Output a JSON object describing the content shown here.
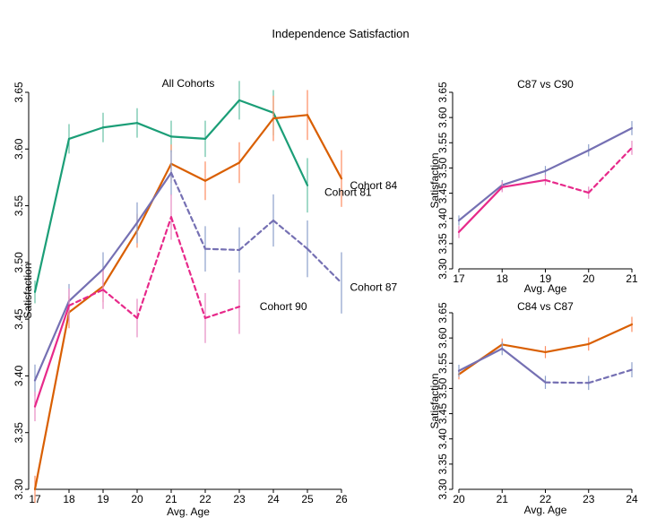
{
  "figure_title": "Independence Satisfaction",
  "colors": {
    "c81": "#1b9e77",
    "c84": "#d95f02",
    "c87": "#7570b3",
    "c90": "#e7298a",
    "err81": "#66c2a5",
    "err84": "#fc8d62",
    "err87": "#8da0cb",
    "err90": "#e78ac3"
  },
  "chart_data": [
    {
      "id": "main",
      "type": "line",
      "title": "All Cohorts",
      "xlabel": "Avg. Age",
      "ylabel": "Satisfaction",
      "xlim": [
        17,
        26
      ],
      "ylim": [
        3.3,
        3.65
      ],
      "xticks": [
        17,
        18,
        19,
        20,
        21,
        22,
        23,
        24,
        25,
        26
      ],
      "yticks": [
        3.3,
        3.35,
        3.4,
        3.45,
        3.5,
        3.55,
        3.6,
        3.65
      ],
      "ytick_labels": [
        "3.30",
        "3.35",
        "3.40",
        "3.45",
        "3.50",
        "3.55",
        "3.60",
        "3.65"
      ],
      "series": [
        {
          "name": "Cohort 81",
          "color": "c81",
          "err_color": "err81",
          "x": [
            17,
            18,
            19,
            20,
            21,
            22,
            23,
            24,
            25
          ],
          "y": [
            3.474,
            3.609,
            3.619,
            3.623,
            3.611,
            3.609,
            3.643,
            3.632,
            3.568
          ],
          "err": [
            0.01,
            0.013,
            0.013,
            0.013,
            0.014,
            0.016,
            0.017,
            0.02,
            0.024
          ],
          "dashed_from": null
        },
        {
          "name": "Cohort 84",
          "color": "c84",
          "err_color": "err84",
          "x": [
            17,
            18,
            19,
            20,
            21,
            22,
            23,
            24,
            25,
            26
          ],
          "y": [
            3.3,
            3.456,
            3.479,
            3.528,
            3.587,
            3.572,
            3.588,
            3.627,
            3.63,
            3.574
          ],
          "err": [
            0.012,
            0.014,
            0.014,
            0.015,
            0.017,
            0.017,
            0.018,
            0.02,
            0.022,
            0.025
          ],
          "dashed_from": null
        },
        {
          "name": "Cohort 87",
          "color": "c87",
          "err_color": "err87",
          "x": [
            17,
            18,
            19,
            20,
            21,
            22,
            23,
            24,
            25,
            26
          ],
          "y": [
            3.396,
            3.466,
            3.494,
            3.535,
            3.579,
            3.512,
            3.511,
            3.537,
            3.512,
            3.482
          ],
          "err": [
            0.014,
            0.015,
            0.015,
            0.018,
            0.02,
            0.02,
            0.02,
            0.023,
            0.025,
            0.027
          ],
          "dashed_from": 21
        },
        {
          "name": "Cohort 90",
          "color": "c90",
          "err_color": "err90",
          "x": [
            17,
            18,
            19,
            20,
            21,
            22,
            23
          ],
          "y": [
            3.373,
            3.462,
            3.476,
            3.451,
            3.54,
            3.451,
            3.461
          ],
          "err": [
            0.013,
            0.015,
            0.017,
            0.017,
            0.02,
            0.022,
            0.024
          ],
          "dashed_from": 18
        }
      ],
      "labels": [
        {
          "series": "Cohort 84",
          "x": 26.25,
          "y": 3.568
        },
        {
          "series": "Cohort 81",
          "x": 25.5,
          "y": 3.562
        },
        {
          "series": "Cohort 87",
          "x": 26.25,
          "y": 3.478
        },
        {
          "series": "Cohort 90",
          "x": 23.6,
          "y": 3.461
        }
      ]
    },
    {
      "id": "c87c90",
      "type": "line",
      "title": "C87 vs C90",
      "xlabel": "Avg. Age",
      "ylabel": "Satisfaction",
      "xlim": [
        17,
        21
      ],
      "ylim": [
        3.3,
        3.65
      ],
      "xticks": [
        17,
        18,
        19,
        20,
        21
      ],
      "yticks": [
        3.3,
        3.35,
        3.4,
        3.45,
        3.5,
        3.55,
        3.6,
        3.65
      ],
      "ytick_labels": [
        "3.30",
        "3.35",
        "3.40",
        "3.45",
        "3.50",
        "3.55",
        "3.60",
        "3.65"
      ],
      "series": [
        {
          "name": "Cohort 87",
          "color": "c87",
          "err_color": "err87",
          "x": [
            17,
            18,
            19,
            20,
            21
          ],
          "y": [
            3.396,
            3.466,
            3.494,
            3.535,
            3.579
          ],
          "err": [
            0.01,
            0.01,
            0.01,
            0.012,
            0.014
          ],
          "dashed_from": null
        },
        {
          "name": "Cohort 90",
          "color": "c90",
          "err_color": "err90",
          "x": [
            17,
            18,
            19,
            20,
            21
          ],
          "y": [
            3.373,
            3.462,
            3.476,
            3.451,
            3.54
          ],
          "err": [
            0.012,
            0.01,
            0.01,
            0.012,
            0.014
          ],
          "dashed_from": 19
        }
      ],
      "labels": []
    },
    {
      "id": "c84c87",
      "type": "line",
      "title": "C84 vs C87",
      "xlabel": "Avg. Age",
      "ylabel": "Satisfaction",
      "xlim": [
        20,
        24
      ],
      "ylim": [
        3.3,
        3.65
      ],
      "xticks": [
        20,
        21,
        22,
        23,
        24
      ],
      "yticks": [
        3.3,
        3.35,
        3.4,
        3.45,
        3.5,
        3.55,
        3.6,
        3.65
      ],
      "ytick_labels": [
        "3.30",
        "3.35",
        "3.40",
        "3.45",
        "3.50",
        "3.55",
        "3.60",
        "3.65"
      ],
      "series": [
        {
          "name": "Cohort 84",
          "color": "c84",
          "err_color": "err84",
          "x": [
            20,
            21,
            22,
            23,
            24
          ],
          "y": [
            3.528,
            3.587,
            3.572,
            3.588,
            3.627
          ],
          "err": [
            0.01,
            0.012,
            0.012,
            0.013,
            0.015
          ],
          "dashed_from": null
        },
        {
          "name": "Cohort 87",
          "color": "c87",
          "err_color": "err87",
          "x": [
            20,
            21,
            22,
            23,
            24
          ],
          "y": [
            3.535,
            3.579,
            3.512,
            3.511,
            3.537
          ],
          "err": [
            0.012,
            0.013,
            0.013,
            0.014,
            0.015
          ],
          "dashed_from": 22
        }
      ],
      "labels": []
    }
  ]
}
